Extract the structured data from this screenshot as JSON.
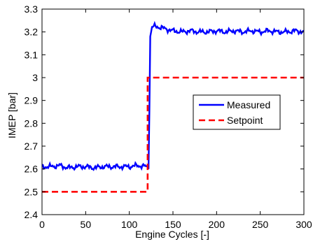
{
  "chart_data": {
    "type": "line",
    "title": "",
    "xlabel": "Engine Cycles [-]",
    "ylabel": "IMEP [bar]",
    "xlim": [
      0,
      300
    ],
    "ylim": [
      2.4,
      3.3
    ],
    "xticks": [
      0,
      50,
      100,
      150,
      200,
      250,
      300
    ],
    "xtick_labels": [
      "0",
      "50",
      "100",
      "150",
      "200",
      "250",
      "300"
    ],
    "yticks": [
      2.4,
      2.5,
      2.6,
      2.7,
      2.8,
      2.9,
      3.0,
      3.1,
      3.2,
      3.3
    ],
    "ytick_labels": [
      "2.4",
      "2.5",
      "2.6",
      "2.7",
      "2.8",
      "2.9",
      "3",
      "3.1",
      "3.2",
      "3.3"
    ],
    "grid": false,
    "legend_position": "right",
    "series": [
      {
        "name": "Measured",
        "color": "#0000ff",
        "style": "solid",
        "x": [
          0,
          10,
          20,
          30,
          40,
          50,
          60,
          70,
          80,
          90,
          100,
          110,
          120,
          122,
          123,
          124,
          126,
          130,
          140,
          150,
          160,
          170,
          180,
          190,
          200,
          210,
          220,
          230,
          240,
          250,
          260,
          270,
          280,
          290,
          300
        ],
        "y": [
          2.61,
          2.61,
          2.615,
          2.605,
          2.61,
          2.61,
          2.605,
          2.61,
          2.61,
          2.61,
          2.61,
          2.615,
          2.61,
          2.6,
          2.85,
          3.18,
          3.22,
          3.225,
          3.215,
          3.205,
          3.2,
          3.205,
          3.2,
          3.2,
          3.205,
          3.2,
          3.205,
          3.2,
          3.205,
          3.2,
          3.205,
          3.2,
          3.2,
          3.205,
          3.2
        ]
      },
      {
        "name": "Setpoint",
        "color": "#ff0000",
        "style": "dashed",
        "x": [
          0,
          121,
          121,
          300
        ],
        "y": [
          2.5,
          2.5,
          3.0,
          3.0
        ]
      }
    ]
  }
}
